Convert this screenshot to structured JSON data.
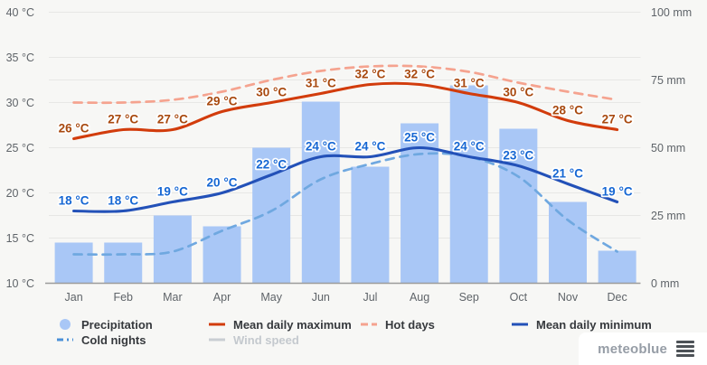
{
  "chart_data": {
    "type": "bar",
    "subtype": "climate chart: precipitation bars (right axis, mm) + temperature lines (left axis, °C)",
    "categories": [
      "Jan",
      "Feb",
      "Mar",
      "Apr",
      "May",
      "Jun",
      "Jul",
      "Aug",
      "Sep",
      "Oct",
      "Nov",
      "Dec"
    ],
    "series": [
      {
        "id": "precipitation",
        "name": "Precipitation",
        "type": "bar",
        "axis": "right",
        "unit": "mm",
        "color": "#a9c7f6",
        "show_labels": false,
        "values": [
          15,
          15,
          25,
          21,
          50,
          67,
          43,
          59,
          73,
          57,
          30,
          12
        ]
      },
      {
        "id": "hot-days",
        "name": "Hot days",
        "type": "line",
        "dashed": true,
        "axis": "left",
        "unit": "°C",
        "color": "#f5a38f",
        "show_labels": false,
        "values": [
          30,
          30,
          30.3,
          31.2,
          32.5,
          33.5,
          34,
          34,
          33.4,
          32.2,
          31.2,
          30.3
        ]
      },
      {
        "id": "cold-nights",
        "name": "Cold nights",
        "type": "line",
        "dashed": true,
        "axis": "left",
        "unit": "°C",
        "color": "#6fa8e0",
        "show_labels": false,
        "values": [
          13.2,
          13.2,
          13.5,
          15.8,
          18,
          21.5,
          23.2,
          24.3,
          24,
          21.8,
          17,
          13.5
        ]
      },
      {
        "id": "mean-daily-maximum",
        "name": "Mean daily maximum",
        "type": "line",
        "axis": "left",
        "unit": "°C",
        "color": "#d23c0c",
        "label_color": "#a8490f",
        "show_labels": true,
        "values": [
          26,
          27,
          27,
          29,
          30,
          31,
          32,
          32,
          31,
          30,
          28,
          27
        ]
      },
      {
        "id": "mean-daily-minimum",
        "name": "Mean daily minimum",
        "type": "line",
        "axis": "left",
        "unit": "°C",
        "color": "#2351b8",
        "label_color": "#1667d3",
        "show_labels": true,
        "values": [
          18,
          18,
          19,
          20,
          22,
          24,
          24,
          25,
          24,
          23,
          21,
          19
        ]
      },
      {
        "id": "wind-speed",
        "name": "Wind speed",
        "type": "line",
        "axis": "left",
        "disabled": true,
        "color": "#c9ced3",
        "show_labels": false,
        "values": []
      }
    ],
    "left_axis": {
      "unit": "°C",
      "min": 10,
      "max": 40,
      "ticks": [
        10,
        15,
        20,
        25,
        30,
        35,
        40
      ],
      "tick_labels": [
        "10 °C",
        "15 °C",
        "20 °C",
        "25 °C",
        "30 °C",
        "35 °C",
        "40 °C"
      ]
    },
    "right_axis": {
      "unit": "mm",
      "min": 0,
      "max": 100,
      "ticks": [
        0,
        25,
        50,
        75,
        100
      ],
      "tick_labels": [
        "0 mm",
        "25 mm",
        "50 mm",
        "75 mm",
        "100 mm"
      ]
    },
    "grid": "on",
    "legend_position": "bottom",
    "label_suffix": " °C"
  },
  "legend": {
    "items": [
      {
        "label": "Precipitation",
        "marker": "circle",
        "color": "#a9c7f6",
        "disabled": false
      },
      {
        "label": "Mean daily maximum",
        "marker": "line",
        "color": "#d23c0c",
        "disabled": false
      },
      {
        "label": "Hot days",
        "marker": "dashed-line",
        "color": "#f5a38f",
        "disabled": false
      },
      {
        "label": "Mean daily minimum",
        "marker": "line",
        "color": "#2351b8",
        "disabled": false
      },
      {
        "label": "Cold nights",
        "marker": "dash-dot-line",
        "color": "#4a90d8",
        "disabled": false
      },
      {
        "label": "Wind speed",
        "marker": "line",
        "color": "#c9ced3",
        "disabled": true
      }
    ]
  },
  "branding": {
    "logo_text": "meteoblue"
  },
  "colors": {
    "background": "#f7f7f5",
    "gridline": "#e7e7e5",
    "baseline": "#9b9b9b",
    "axis_text": "#5f6469",
    "legend_text": "#36393d",
    "legend_disabled": "#c4c9ce",
    "bar": "#a9c7f6",
    "max_line": "#d23c0c",
    "max_label": "#a8490f",
    "min_line": "#2351b8",
    "min_label": "#1667d3",
    "hot_days": "#f5a38f",
    "cold_nights": "#6fa8e0",
    "logo_text": "#969da6",
    "menu_icon": "#4d5257"
  }
}
